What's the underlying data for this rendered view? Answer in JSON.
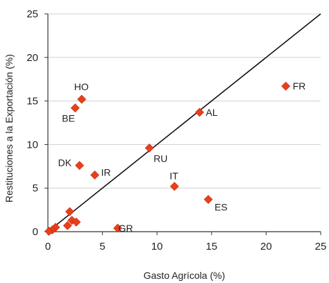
{
  "chart_data": {
    "type": "scatter",
    "xlabel": "Gasto Agrícola (%)",
    "ylabel": "Restituciones a la Exportación (%)",
    "xlim": [
      0,
      25
    ],
    "ylim": [
      0,
      25
    ],
    "xticks": [
      "0",
      "5",
      "10",
      "15",
      "20",
      "25"
    ],
    "yticks": [
      "0",
      "5",
      "10",
      "15",
      "20",
      "25"
    ],
    "grid": "horizontal",
    "reference_line": "y = x",
    "marker_color": "#e8401c",
    "line_color": "#111111",
    "points": [
      {
        "label": "HO",
        "x": 3.1,
        "y": 15.2
      },
      {
        "label": "BE",
        "x": 2.5,
        "y": 14.2
      },
      {
        "label": "FR",
        "x": 21.8,
        "y": 16.7
      },
      {
        "label": "AL",
        "x": 13.9,
        "y": 13.7
      },
      {
        "label": "RU",
        "x": 9.3,
        "y": 9.6
      },
      {
        "label": "DK",
        "x": 2.9,
        "y": 7.6
      },
      {
        "label": "IR",
        "x": 4.3,
        "y": 6.5
      },
      {
        "label": "IT",
        "x": 11.6,
        "y": 5.2
      },
      {
        "label": "ES",
        "x": 14.7,
        "y": 3.7
      },
      {
        "label": "GR",
        "x": 6.4,
        "y": 0.4
      },
      {
        "label": "",
        "x": 2.0,
        "y": 2.3
      },
      {
        "label": "",
        "x": 2.2,
        "y": 1.3
      },
      {
        "label": "",
        "x": 2.6,
        "y": 1.1
      },
      {
        "label": "",
        "x": 1.8,
        "y": 0.7
      },
      {
        "label": "",
        "x": 0.7,
        "y": 0.5
      },
      {
        "label": "",
        "x": 0.4,
        "y": 0.2
      },
      {
        "label": "",
        "x": 0.1,
        "y": 0.05
      }
    ]
  }
}
